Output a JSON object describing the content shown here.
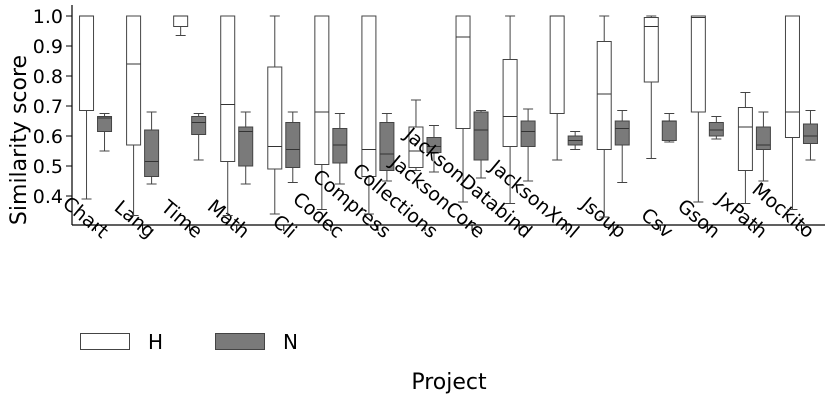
{
  "chart_data": {
    "type": "box",
    "ylabel": "Similarity score",
    "xlabel": "Project",
    "ylim": [
      0.3,
      1.02
    ],
    "yticks": [
      "0.4",
      "0.5",
      "0.6",
      "0.7",
      "0.8",
      "0.9",
      "1.0"
    ],
    "categories": [
      "Chart",
      "Lang",
      "Time",
      "Math",
      "Cli",
      "Codec",
      "Compress",
      "Collections",
      "JacksonCore",
      "JacksonDatabind",
      "JacksonXml",
      "Jsoup",
      "Csv",
      "Gson",
      "JxPath",
      "Mockito"
    ],
    "grid": false,
    "legend_position": "bottom-left",
    "series": [
      {
        "name": "H",
        "color": "#ffffff",
        "boxes": [
          {
            "whislo": 0.39,
            "q1": 0.685,
            "med": 1.0,
            "q3": 1.0,
            "whishi": 1.0
          },
          {
            "whislo": 0.335,
            "q1": 0.57,
            "med": 0.84,
            "q3": 1.0,
            "whishi": 1.0
          },
          {
            "whislo": 0.935,
            "q1": 0.965,
            "med": 1.0,
            "q3": 1.0,
            "whishi": 1.0
          },
          {
            "whislo": 0.335,
            "q1": 0.515,
            "med": 0.705,
            "q3": 1.0,
            "whishi": 1.0
          },
          {
            "whislo": 0.34,
            "q1": 0.49,
            "med": 0.565,
            "q3": 0.83,
            "whishi": 1.0
          },
          {
            "whislo": 0.355,
            "q1": 0.505,
            "med": 0.68,
            "q3": 1.0,
            "whishi": 1.0
          },
          {
            "whislo": 0.34,
            "q1": 0.465,
            "med": 0.555,
            "q3": 1.0,
            "whishi": 1.0
          },
          {
            "whislo": 0.485,
            "q1": 0.495,
            "med": 0.55,
            "q3": 0.63,
            "whishi": 0.72
          },
          {
            "whislo": 0.38,
            "q1": 0.625,
            "med": 0.93,
            "q3": 1.0,
            "whishi": 1.0
          },
          {
            "whislo": 0.375,
            "q1": 0.565,
            "med": 0.665,
            "q3": 0.855,
            "whishi": 1.0
          },
          {
            "whislo": 0.52,
            "q1": 0.675,
            "med": 1.0,
            "q3": 1.0,
            "whishi": 1.0
          },
          {
            "whislo": 0.33,
            "q1": 0.555,
            "med": 0.74,
            "q3": 0.915,
            "whishi": 1.0
          },
          {
            "whislo": 0.525,
            "q1": 0.78,
            "med": 0.965,
            "q3": 0.995,
            "whishi": 1.0
          },
          {
            "whislo": 0.38,
            "q1": 0.68,
            "med": 0.995,
            "q3": 1.0,
            "whishi": 1.0
          },
          {
            "whislo": 0.375,
            "q1": 0.485,
            "med": 0.63,
            "q3": 0.695,
            "whishi": 0.745
          },
          {
            "whislo": 0.355,
            "q1": 0.595,
            "med": 0.68,
            "q3": 1.0,
            "whishi": 1.0
          }
        ]
      },
      {
        "name": "N",
        "color": "#7a7a7a",
        "boxes": [
          {
            "whislo": 0.55,
            "q1": 0.615,
            "med": 0.66,
            "q3": 0.665,
            "whishi": 0.675
          },
          {
            "whislo": 0.44,
            "q1": 0.465,
            "med": 0.515,
            "q3": 0.62,
            "whishi": 0.68
          },
          {
            "whislo": 0.52,
            "q1": 0.605,
            "med": 0.645,
            "q3": 0.665,
            "whishi": 0.675
          },
          {
            "whislo": 0.44,
            "q1": 0.5,
            "med": 0.615,
            "q3": 0.63,
            "whishi": 0.68
          },
          {
            "whislo": 0.445,
            "q1": 0.495,
            "med": 0.555,
            "q3": 0.645,
            "whishi": 0.68
          },
          {
            "whislo": 0.44,
            "q1": 0.51,
            "med": 0.57,
            "q3": 0.625,
            "whishi": 0.675
          },
          {
            "whislo": 0.45,
            "q1": 0.485,
            "med": 0.54,
            "q3": 0.645,
            "whishi": 0.675
          },
          {
            "whislo": 0.48,
            "q1": 0.545,
            "med": 0.565,
            "q3": 0.595,
            "whishi": 0.635
          },
          {
            "whislo": 0.46,
            "q1": 0.52,
            "med": 0.62,
            "q3": 0.68,
            "whishi": 0.685
          },
          {
            "whislo": 0.45,
            "q1": 0.565,
            "med": 0.615,
            "q3": 0.65,
            "whishi": 0.69
          },
          {
            "whislo": 0.555,
            "q1": 0.57,
            "med": 0.585,
            "q3": 0.6,
            "whishi": 0.615
          },
          {
            "whislo": 0.445,
            "q1": 0.57,
            "med": 0.625,
            "q3": 0.65,
            "whishi": 0.685
          },
          {
            "whislo": 0.58,
            "q1": 0.585,
            "med": 0.65,
            "q3": 0.65,
            "whishi": 0.675
          },
          {
            "whislo": 0.59,
            "q1": 0.6,
            "med": 0.62,
            "q3": 0.645,
            "whishi": 0.665
          },
          {
            "whislo": 0.45,
            "q1": 0.555,
            "med": 0.57,
            "q3": 0.63,
            "whishi": 0.68
          },
          {
            "whislo": 0.52,
            "q1": 0.575,
            "med": 0.6,
            "q3": 0.64,
            "whishi": 0.685
          }
        ]
      }
    ]
  }
}
